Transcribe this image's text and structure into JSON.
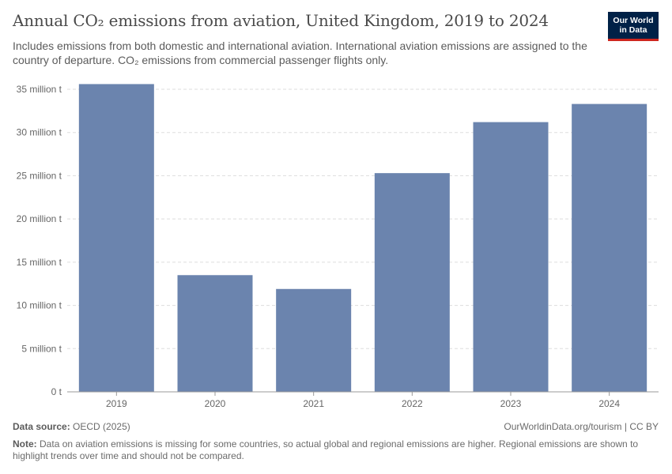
{
  "header": {
    "title": "Annual CO₂ emissions from aviation, United Kingdom, 2019 to 2024",
    "subtitle": "Includes emissions from both domestic and international aviation. International aviation emissions are assigned to the country of departure. CO₂ emissions from commercial passenger flights only.",
    "logo_line1": "Our World",
    "logo_line2": "in Data"
  },
  "footer": {
    "source_label": "Data source:",
    "source_value": "OECD (2025)",
    "license": "OurWorldinData.org/tourism | CC BY",
    "note_label": "Note:",
    "note_text": "Data on aviation emissions is missing for some countries, so actual global and regional emissions are higher. Regional emissions are shown to highlight trends over time and should not be compared."
  },
  "colors": {
    "bar": "#6b84ae",
    "grid": "#dddddd",
    "axis": "#999999",
    "tick_text": "#666666",
    "logo_bg": "#002147",
    "logo_accent": "#ce261e"
  },
  "chart_data": {
    "type": "bar",
    "title": "Annual CO₂ emissions from aviation, United Kingdom, 2019 to 2024",
    "xlabel": "",
    "ylabel": "",
    "categories": [
      "2019",
      "2020",
      "2021",
      "2022",
      "2023",
      "2024"
    ],
    "values": [
      35600000,
      13500000,
      11900000,
      25300000,
      31200000,
      33300000
    ],
    "ylim": [
      0,
      35000000
    ],
    "yticks": [
      0,
      5000000,
      10000000,
      15000000,
      20000000,
      25000000,
      30000000,
      35000000
    ],
    "ytick_labels": [
      "0 t",
      "5 million t",
      "10 million t",
      "15 million t",
      "20 million t",
      "25 million t",
      "30 million t",
      "35 million t"
    ],
    "grid": true,
    "legend": "none"
  }
}
